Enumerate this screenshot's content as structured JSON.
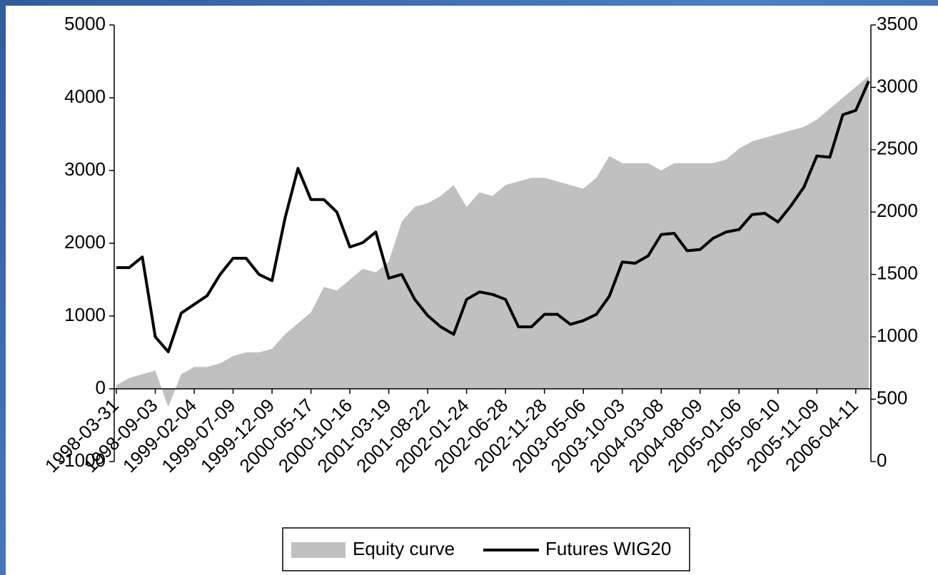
{
  "chart_data": {
    "type": "area_line",
    "categories": [
      "1998-03-31",
      null,
      null,
      "1998-09-03",
      null,
      null,
      "1999-02-04",
      null,
      null,
      "1999-07-09",
      null,
      null,
      "1999-12-09",
      null,
      null,
      "2000-05-17",
      null,
      null,
      "2000-10-16",
      null,
      null,
      "2001-03-19",
      null,
      null,
      "2001-08-22",
      null,
      null,
      "2002-01-24",
      null,
      null,
      "2002-06-28",
      null,
      null,
      "2002-11-28",
      null,
      null,
      "2003-05-06",
      null,
      null,
      "2003-10-03",
      null,
      null,
      "2004-03-08",
      null,
      null,
      "2004-08-09",
      null,
      null,
      "2005-01-06",
      null,
      null,
      "2005-06-10",
      null,
      null,
      "2005-11-09",
      null,
      null,
      "2006-04-11",
      null
    ],
    "series": [
      {
        "name": "Equity curve",
        "color": "#c0c0c0",
        "type": "area",
        "values": [
          50,
          150,
          200,
          250,
          -250,
          200,
          300,
          300,
          350,
          450,
          500,
          500,
          550,
          750,
          900,
          1050,
          1400,
          1350,
          1500,
          1650,
          1600,
          1750,
          2300,
          2500,
          2550,
          2650,
          2800,
          2500,
          2700,
          2650,
          2800,
          2850,
          2900,
          2900,
          2850,
          2800,
          2750,
          2900,
          3200,
          3100,
          3100,
          3100,
          3000,
          3100,
          3100,
          3100,
          3100,
          3150,
          3300,
          3400,
          3450,
          3500,
          3550,
          3600,
          3700,
          3850,
          4000,
          4150,
          4300
        ]
      },
      {
        "name": "Futures WIG20",
        "color": "#000000",
        "type": "line",
        "axis": "y2",
        "values": [
          1555,
          1555,
          1640,
          1000,
          880,
          1190,
          1260,
          1330,
          1500,
          1630,
          1630,
          1500,
          1450,
          1950,
          2350,
          2100,
          2100,
          2000,
          1720,
          1755,
          1840,
          1470,
          1500,
          1300,
          1170,
          1080,
          1020,
          1300,
          1360,
          1340,
          1300,
          1080,
          1080,
          1180,
          1180,
          1100,
          1130,
          1180,
          1325,
          1600,
          1590,
          1650,
          1820,
          1830,
          1690,
          1700,
          1790,
          1840,
          1860,
          1980,
          1990,
          1920,
          2050,
          2200,
          2450,
          2440,
          2780,
          2815,
          3050
        ]
      }
    ],
    "ylim": [
      -1000,
      5000
    ],
    "yticks": [
      -1000,
      0,
      1000,
      2000,
      3000,
      4000,
      5000
    ],
    "y2lim": [
      0,
      3500
    ],
    "y2ticks": [
      0,
      500,
      1000,
      1500,
      2000,
      2500,
      3000,
      3500
    ],
    "legend": "bottom"
  }
}
